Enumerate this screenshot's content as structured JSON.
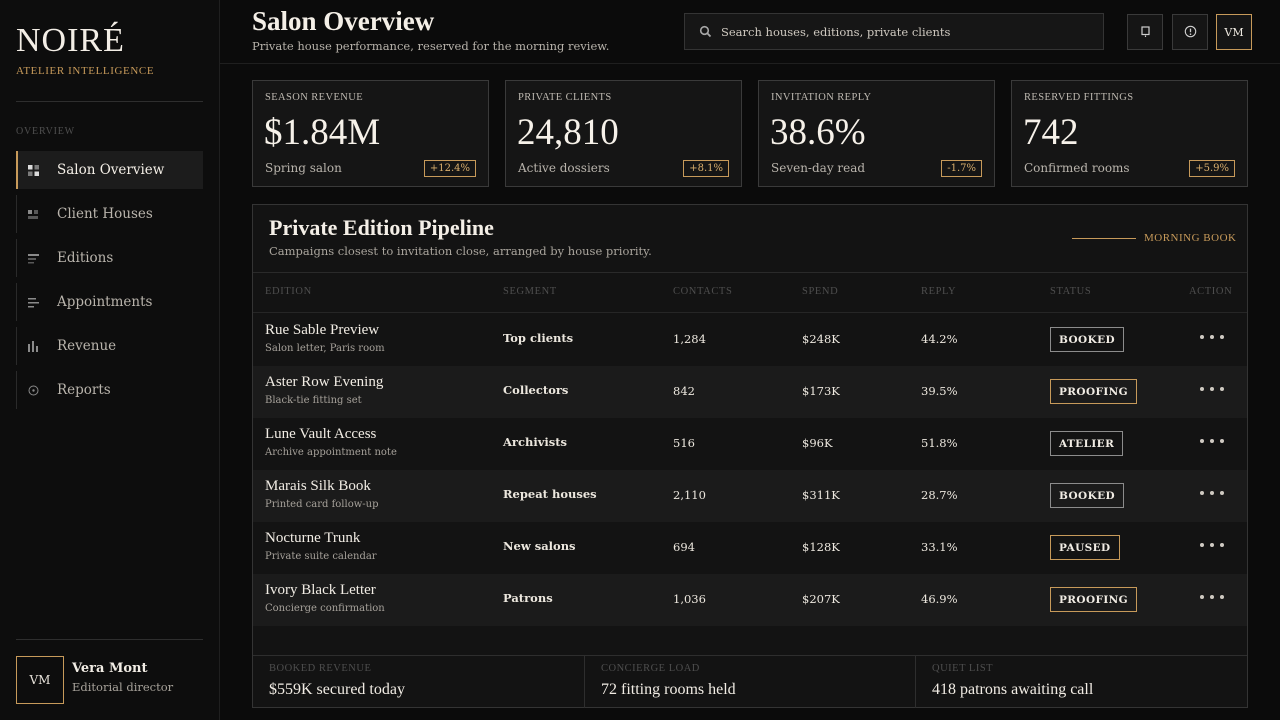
{
  "brand": {
    "name": "NOIRÉ",
    "subtitle": "ATELIER INTELLIGENCE"
  },
  "sidebar": {
    "section_label": "OVERVIEW",
    "items": [
      {
        "label": "Salon Overview",
        "icon": "grid-icon",
        "active": true
      },
      {
        "label": "Client Houses",
        "icon": "users-icon",
        "active": false
      },
      {
        "label": "Editions",
        "icon": "document-icon",
        "active": false
      },
      {
        "label": "Appointments",
        "icon": "list-icon",
        "active": false
      },
      {
        "label": "Revenue",
        "icon": "bar-chart-icon",
        "active": false
      },
      {
        "label": "Reports",
        "icon": "clock-icon",
        "active": false
      }
    ],
    "user": {
      "initials": "VM",
      "name": "Vera Mont",
      "role": "Editorial director"
    }
  },
  "header": {
    "title": "Salon Overview",
    "subtitle": "Private house performance, reserved for the morning review.",
    "search_placeholder": "Search houses, editions, private clients",
    "avatar_initials": "VM"
  },
  "kpis": [
    {
      "label": "SEASON REVENUE",
      "value": "$1.84M",
      "foot": "Spring salon",
      "delta": "+12.4%"
    },
    {
      "label": "PRIVATE CLIENTS",
      "value": "24,810",
      "foot": "Active dossiers",
      "delta": "+8.1%"
    },
    {
      "label": "INVITATION REPLY",
      "value": "38.6%",
      "foot": "Seven-day read",
      "delta": "-1.7%"
    },
    {
      "label": "RESERVED FITTINGS",
      "value": "742",
      "foot": "Confirmed rooms",
      "delta": "+5.9%"
    }
  ],
  "pipeline": {
    "title": "Private Edition Pipeline",
    "subtitle": "Campaigns closest to invitation close, arranged by house priority.",
    "tag": "MORNING BOOK",
    "columns": [
      "EDITION",
      "SEGMENT",
      "CONTACTS",
      "SPEND",
      "REPLY",
      "STATUS",
      "ACTION"
    ],
    "rows": [
      {
        "name": "Rue Sable Preview",
        "sub": "Salon letter, Paris room",
        "segment": "Top clients",
        "contacts": "1,284",
        "spend": "$248K",
        "reply": "44.2%",
        "status": "BOOKED",
        "status_style": "grey"
      },
      {
        "name": "Aster Row Evening",
        "sub": "Black-tie fitting set",
        "segment": "Collectors",
        "contacts": "842",
        "spend": "$173K",
        "reply": "39.5%",
        "status": "PROOFING",
        "status_style": "gold"
      },
      {
        "name": "Lune Vault Access",
        "sub": "Archive appointment note",
        "segment": "Archivists",
        "contacts": "516",
        "spend": "$96K",
        "reply": "51.8%",
        "status": "ATELIER",
        "status_style": "grey"
      },
      {
        "name": "Marais Silk Book",
        "sub": "Printed card follow-up",
        "segment": "Repeat houses",
        "contacts": "2,110",
        "spend": "$311K",
        "reply": "28.7%",
        "status": "BOOKED",
        "status_style": "grey"
      },
      {
        "name": "Nocturne Trunk",
        "sub": "Private suite calendar",
        "segment": "New salons",
        "contacts": "694",
        "spend": "$128K",
        "reply": "33.1%",
        "status": "PAUSED",
        "status_style": "gold"
      },
      {
        "name": "Ivory Black Letter",
        "sub": "Concierge confirmation",
        "segment": "Patrons",
        "contacts": "1,036",
        "spend": "$207K",
        "reply": "46.9%",
        "status": "PROOFING",
        "status_style": "gold"
      }
    ],
    "footer": [
      {
        "label": "BOOKED REVENUE",
        "value": "$559K secured today"
      },
      {
        "label": "CONCIERGE LOAD",
        "value": "72 fitting rooms held"
      },
      {
        "label": "QUIET LIST",
        "value": "418 patrons awaiting call"
      }
    ]
  },
  "colors": {
    "accent": "#c79a5a",
    "background": "#0b0b0b",
    "surface": "#151515"
  }
}
